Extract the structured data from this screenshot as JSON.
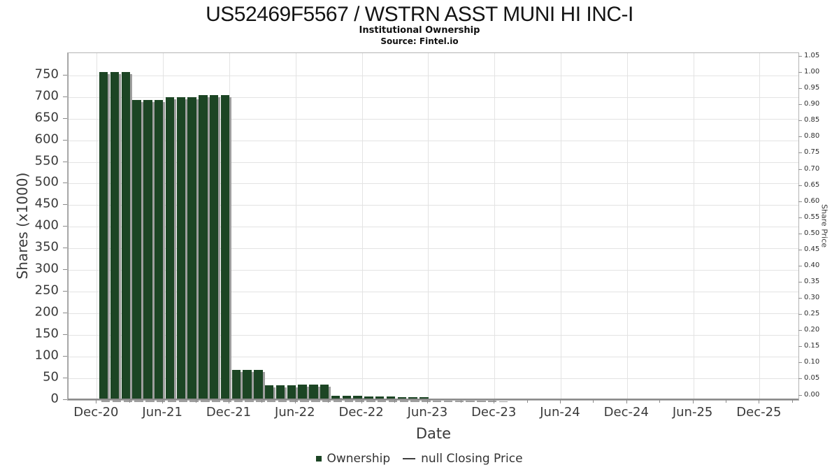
{
  "chart_data": {
    "type": "bar",
    "title": "US52469F5567 / WSTRN ASST MUNI HI INC-I",
    "subtitle": "Institutional Ownership",
    "source": "Source: Fintel.io",
    "xlabel": "Date",
    "ylabel_left": "Shares (x1000)",
    "ylabel_right": "Share Price",
    "x_tick_labels": [
      "Dec-20",
      "Jun-21",
      "Dec-21",
      "Jun-22",
      "Dec-22",
      "Jun-23",
      "Dec-23",
      "Jun-24",
      "Dec-24",
      "Jun-25",
      "Dec-25"
    ],
    "y_left_ticks": [
      0,
      50,
      100,
      150,
      200,
      250,
      300,
      350,
      400,
      450,
      500,
      550,
      600,
      650,
      700,
      750
    ],
    "y_left_lim": [
      0,
      800
    ],
    "y_right_tick_labels": [
      "0.00",
      "0.05",
      "0.10",
      "0.15",
      "0.20",
      "0.25",
      "0.30",
      "0.35",
      "0.40",
      "0.45",
      "0.50",
      "0.55",
      "0.60",
      "0.65",
      "0.70",
      "0.75",
      "0.80",
      "0.85",
      "0.90",
      "0.95",
      "1.00",
      "1.05"
    ],
    "y_right_lim": [
      0,
      1.05
    ],
    "grid": true,
    "legend_position": "bottom",
    "series": [
      {
        "name": "Ownership",
        "type": "bar",
        "color": "#1c4524",
        "shadow_color": "#9e9e9e",
        "months": [
          "Dec-20",
          "Jan-21",
          "Feb-21",
          "Mar-21",
          "Apr-21",
          "May-21",
          "Jun-21",
          "Jul-21",
          "Aug-21",
          "Sep-21",
          "Oct-21",
          "Nov-21",
          "Dec-21",
          "Jan-22",
          "Feb-22",
          "Mar-22",
          "Apr-22",
          "May-22",
          "Jun-22",
          "Jul-22",
          "Aug-22",
          "Sep-22",
          "Oct-22",
          "Nov-22",
          "Dec-22",
          "Jan-23",
          "Feb-23",
          "Mar-23",
          "Apr-23",
          "May-23",
          "Jun-23",
          "Jul-23",
          "Aug-23",
          "Sep-23",
          "Oct-23",
          "Nov-23",
          "Dec-23"
        ],
        "values": [
          758,
          758,
          758,
          693,
          693,
          693,
          699,
          699,
          699,
          705,
          705,
          705,
          70,
          70,
          70,
          34,
          34,
          34,
          36,
          36,
          36,
          10,
          10,
          10,
          8,
          8,
          8,
          6,
          6,
          6,
          4,
          4,
          4,
          3,
          3,
          3,
          2
        ]
      },
      {
        "name": "null Closing Price",
        "type": "line",
        "color": "#3f3f3f",
        "values": []
      }
    ],
    "legend": [
      {
        "label": "Ownership",
        "marker": "square"
      },
      {
        "label": "null Closing Price",
        "marker": "line"
      }
    ]
  }
}
